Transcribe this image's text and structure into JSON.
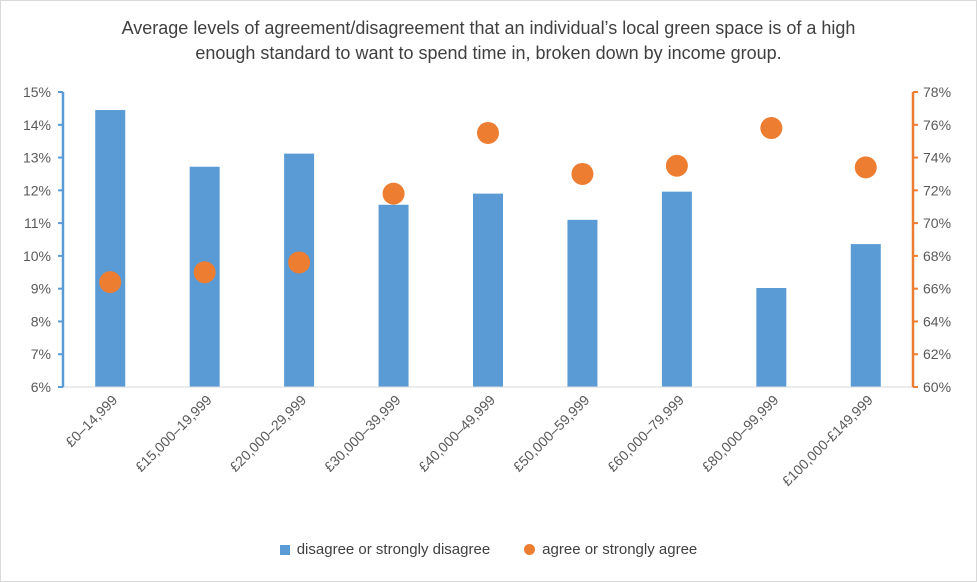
{
  "chart_data": {
    "type": "bar",
    "title_line1": "Average levels of agreement/disagreement that an individual’s local green space is of a high",
    "title_line2": "enough standard to want to spend time in, broken down by income group.",
    "categories": [
      "£0–14,999",
      "£15,000–19,999",
      "£20,000–29,999",
      "£30,000–39,999",
      "£40,000–49,999",
      "£50,000–59,999",
      "£60,000–79,999",
      "£80,000–99,999",
      "£100,000-£149,999"
    ],
    "series": [
      {
        "name": "disagree or strongly disagree",
        "kind": "bar",
        "axis": "left",
        "color": "#5b9bd5",
        "values": [
          14.45,
          12.72,
          13.12,
          11.56,
          11.9,
          11.1,
          11.96,
          9.02,
          10.36
        ]
      },
      {
        "name": "agree or strongly agree",
        "kind": "scatter",
        "axis": "right",
        "color": "#ed7d31",
        "values": [
          66.4,
          67.0,
          67.6,
          71.8,
          75.5,
          73.0,
          73.5,
          75.8,
          73.4
        ]
      }
    ],
    "y_left": {
      "min": 6,
      "max": 15,
      "step": 1,
      "suffix": "%"
    },
    "y_right": {
      "min": 60,
      "max": 78,
      "step": 2,
      "suffix": "%"
    },
    "axis_colors": {
      "left": "#5b9bd5",
      "right": "#ed7d31"
    },
    "text_color": "#595959",
    "grid": false,
    "legend_position": "bottom"
  }
}
